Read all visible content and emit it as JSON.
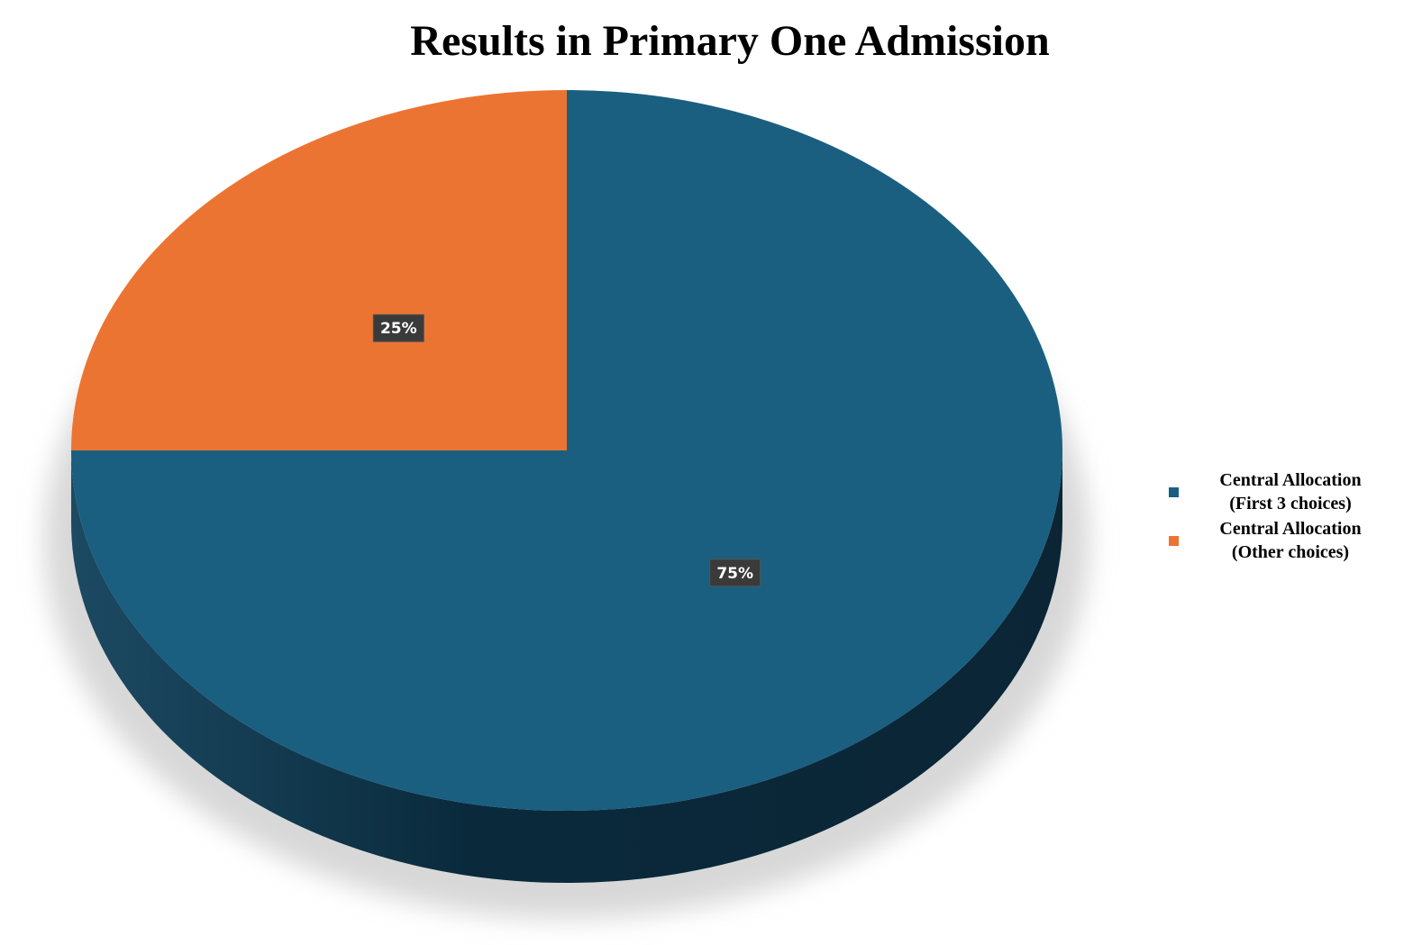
{
  "chart_data": {
    "type": "pie",
    "title": "Results in Primary One Admission",
    "categories": [
      "Central Allocation (First 3 choices)",
      "Central Allocation (Other choices)"
    ],
    "values": [
      75,
      25
    ],
    "value_labels": [
      "75%",
      "25%"
    ],
    "colors": [
      "#1a5f80",
      "#ec7433"
    ]
  }
}
